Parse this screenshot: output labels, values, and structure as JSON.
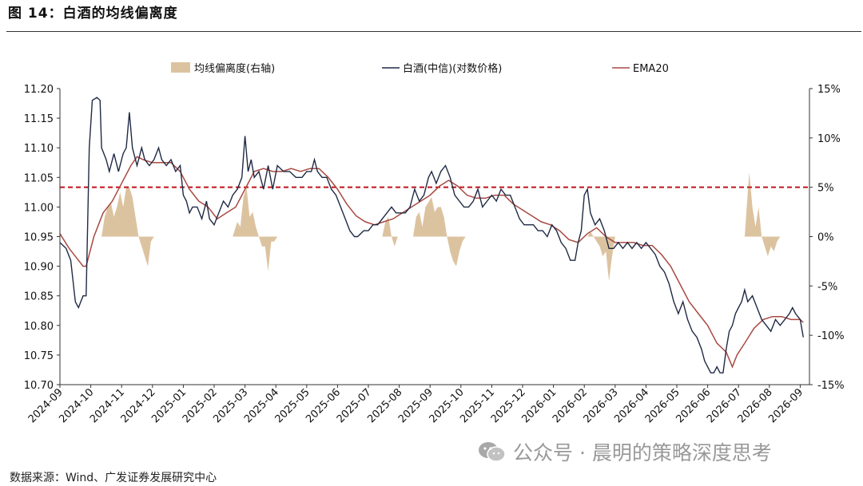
{
  "figure_title": "图 14：白酒的均线偏离度",
  "source_note": "数据来源：Wind、广发证券发展研究中心",
  "watermark": {
    "text": "公众号 · 晨明的策略深度思考",
    "icon": "wechat-icon"
  },
  "colors": {
    "price": "#1f2a44",
    "ema": "#a84a43",
    "deviation": "#dcc3a0",
    "threshold": "#c0141b",
    "axis": "#333333"
  },
  "chart_data": {
    "type": "line",
    "legend_position": "top",
    "grid": false,
    "legend": [
      "均线偏离度(右轴)",
      "白酒(中信)(对数价格)",
      "EMA20"
    ],
    "x_ticks": [
      "2024-09",
      "2024-10",
      "2024-11",
      "2024-12",
      "2025-01",
      "2025-02",
      "2025-03",
      "2025-04",
      "2025-05",
      "2025-06",
      "2025-07",
      "2025-08",
      "2025-09",
      "2025-10",
      "2025-11",
      "2025-12",
      "2026-01",
      "2026-02",
      "2026-03",
      "2026-04",
      "2026-05",
      "2026-06",
      "2026-07",
      "2026-08",
      "2026-09"
    ],
    "x_range": [
      0,
      24.3
    ],
    "left_axis": {
      "ylim": [
        10.7,
        11.2
      ],
      "ticks": [
        "10.70",
        "10.75",
        "10.80",
        "10.85",
        "10.90",
        "10.95",
        "11.00",
        "11.05",
        "11.10",
        "11.15",
        "11.20"
      ]
    },
    "right_axis": {
      "ylim": [
        -15,
        15
      ],
      "ticks": [
        "-15%",
        "-10%",
        "-5%",
        "0%",
        "5%",
        "10%",
        "15%"
      ]
    },
    "threshold_percent": 5,
    "price_series": {
      "name": "白酒(中信)(对数价格)",
      "points": [
        [
          0,
          10.94
        ],
        [
          0.2,
          10.93
        ],
        [
          0.35,
          10.91
        ],
        [
          0.5,
          10.84
        ],
        [
          0.6,
          10.83
        ],
        [
          0.75,
          10.85
        ],
        [
          0.85,
          10.85
        ],
        [
          0.95,
          11.1
        ],
        [
          1.05,
          11.18
        ],
        [
          1.2,
          11.185
        ],
        [
          1.3,
          11.18
        ],
        [
          1.35,
          11.1
        ],
        [
          1.5,
          11.08
        ],
        [
          1.6,
          11.06
        ],
        [
          1.75,
          11.09
        ],
        [
          1.9,
          11.06
        ],
        [
          2.05,
          11.09
        ],
        [
          2.15,
          11.1
        ],
        [
          2.25,
          11.16
        ],
        [
          2.35,
          11.1
        ],
        [
          2.5,
          11.07
        ],
        [
          2.65,
          11.1
        ],
        [
          2.75,
          11.08
        ],
        [
          2.9,
          11.07
        ],
        [
          3.05,
          11.08
        ],
        [
          3.2,
          11.1
        ],
        [
          3.3,
          11.08
        ],
        [
          3.45,
          11.07
        ],
        [
          3.6,
          11.08
        ],
        [
          3.75,
          11.06
        ],
        [
          3.9,
          11.07
        ],
        [
          4.0,
          11.02
        ],
        [
          4.1,
          11.01
        ],
        [
          4.2,
          10.99
        ],
        [
          4.3,
          11.0
        ],
        [
          4.45,
          11.0
        ],
        [
          4.6,
          10.98
        ],
        [
          4.75,
          11.01
        ],
        [
          4.85,
          10.98
        ],
        [
          5.0,
          10.97
        ],
        [
          5.15,
          10.99
        ],
        [
          5.3,
          11.01
        ],
        [
          5.45,
          11.0
        ],
        [
          5.6,
          11.02
        ],
        [
          5.75,
          11.03
        ],
        [
          5.9,
          11.05
        ],
        [
          6.0,
          11.12
        ],
        [
          6.1,
          11.06
        ],
        [
          6.2,
          11.08
        ],
        [
          6.3,
          11.05
        ],
        [
          6.45,
          11.06
        ],
        [
          6.6,
          11.03
        ],
        [
          6.75,
          11.07
        ],
        [
          6.9,
          11.03
        ],
        [
          7.05,
          11.07
        ],
        [
          7.25,
          11.06
        ],
        [
          7.45,
          11.06
        ],
        [
          7.65,
          11.05
        ],
        [
          7.85,
          11.05
        ],
        [
          8.0,
          11.06
        ],
        [
          8.15,
          11.06
        ],
        [
          8.25,
          11.08
        ],
        [
          8.35,
          11.06
        ],
        [
          8.5,
          11.05
        ],
        [
          8.65,
          11.05
        ],
        [
          8.8,
          11.03
        ],
        [
          8.95,
          11.02
        ],
        [
          9.1,
          11.0
        ],
        [
          9.25,
          10.98
        ],
        [
          9.4,
          10.96
        ],
        [
          9.55,
          10.95
        ],
        [
          9.65,
          10.95
        ],
        [
          9.85,
          10.96
        ],
        [
          10.0,
          10.96
        ],
        [
          10.15,
          10.97
        ],
        [
          10.3,
          10.97
        ],
        [
          10.45,
          10.98
        ],
        [
          10.6,
          10.99
        ],
        [
          10.75,
          11.0
        ],
        [
          10.9,
          10.99
        ],
        [
          11.05,
          10.99
        ],
        [
          11.2,
          10.99
        ],
        [
          11.35,
          11.0
        ],
        [
          11.5,
          11.03
        ],
        [
          11.65,
          11.01
        ],
        [
          11.8,
          11.02
        ],
        [
          11.95,
          11.05
        ],
        [
          12.05,
          11.06
        ],
        [
          12.2,
          11.04
        ],
        [
          12.35,
          11.06
        ],
        [
          12.5,
          11.07
        ],
        [
          12.65,
          11.05
        ],
        [
          12.8,
          11.02
        ],
        [
          12.95,
          11.01
        ],
        [
          13.1,
          11.0
        ],
        [
          13.25,
          11.0
        ],
        [
          13.4,
          11.01
        ],
        [
          13.55,
          11.03
        ],
        [
          13.7,
          11.0
        ],
        [
          13.85,
          11.01
        ],
        [
          14.0,
          11.02
        ],
        [
          14.15,
          11.01
        ],
        [
          14.3,
          11.03
        ],
        [
          14.45,
          11.02
        ],
        [
          14.6,
          11.02
        ],
        [
          14.75,
          11.0
        ],
        [
          14.9,
          10.98
        ],
        [
          15.05,
          10.97
        ],
        [
          15.2,
          10.97
        ],
        [
          15.35,
          10.97
        ],
        [
          15.5,
          10.96
        ],
        [
          15.65,
          10.96
        ],
        [
          15.8,
          10.95
        ],
        [
          15.95,
          10.97
        ],
        [
          16.1,
          10.96
        ],
        [
          16.25,
          10.94
        ],
        [
          16.4,
          10.93
        ],
        [
          16.55,
          10.91
        ],
        [
          16.7,
          10.91
        ],
        [
          16.8,
          10.94
        ],
        [
          16.9,
          10.96
        ],
        [
          17.0,
          11.02
        ],
        [
          17.1,
          11.03
        ],
        [
          17.2,
          10.99
        ],
        [
          17.35,
          10.97
        ],
        [
          17.5,
          10.98
        ],
        [
          17.65,
          10.96
        ],
        [
          17.8,
          10.93
        ],
        [
          17.95,
          10.93
        ],
        [
          18.1,
          10.94
        ],
        [
          18.25,
          10.93
        ],
        [
          18.4,
          10.94
        ],
        [
          18.55,
          10.93
        ],
        [
          18.7,
          10.94
        ],
        [
          18.85,
          10.93
        ],
        [
          19.0,
          10.94
        ],
        [
          19.15,
          10.93
        ],
        [
          19.3,
          10.92
        ],
        [
          19.45,
          10.9
        ],
        [
          19.6,
          10.89
        ],
        [
          19.75,
          10.87
        ],
        [
          19.9,
          10.84
        ],
        [
          20.05,
          10.82
        ],
        [
          20.2,
          10.84
        ],
        [
          20.35,
          10.81
        ],
        [
          20.5,
          10.79
        ],
        [
          20.65,
          10.78
        ],
        [
          20.8,
          10.76
        ],
        [
          20.9,
          10.74
        ],
        [
          21.0,
          10.73
        ],
        [
          21.1,
          10.72
        ],
        [
          21.2,
          10.72
        ],
        [
          21.3,
          10.73
        ],
        [
          21.4,
          10.72
        ],
        [
          21.5,
          10.72
        ],
        [
          21.6,
          10.76
        ],
        [
          21.7,
          10.79
        ],
        [
          21.8,
          10.8
        ],
        [
          21.9,
          10.82
        ],
        [
          22.0,
          10.83
        ],
        [
          22.1,
          10.84
        ],
        [
          22.2,
          10.86
        ],
        [
          22.3,
          10.84
        ],
        [
          22.45,
          10.85
        ],
        [
          22.6,
          10.83
        ],
        [
          22.75,
          10.81
        ],
        [
          22.9,
          10.8
        ],
        [
          23.05,
          10.79
        ],
        [
          23.2,
          10.81
        ],
        [
          23.35,
          10.8
        ],
        [
          23.5,
          10.81
        ],
        [
          23.65,
          10.82
        ],
        [
          23.75,
          10.83
        ],
        [
          23.85,
          10.82
        ],
        [
          24.0,
          10.81
        ],
        [
          24.1,
          10.78
        ]
      ]
    },
    "ema_series": {
      "name": "EMA20",
      "points": [
        [
          0,
          10.955
        ],
        [
          0.3,
          10.93
        ],
        [
          0.6,
          10.91
        ],
        [
          0.75,
          10.9
        ],
        [
          0.85,
          10.9
        ],
        [
          1.1,
          10.95
        ],
        [
          1.4,
          10.99
        ],
        [
          1.7,
          11.01
        ],
        [
          2.0,
          11.04
        ],
        [
          2.3,
          11.07
        ],
        [
          2.5,
          11.085
        ],
        [
          2.7,
          11.08
        ],
        [
          3.0,
          11.075
        ],
        [
          3.3,
          11.075
        ],
        [
          3.6,
          11.075
        ],
        [
          3.9,
          11.06
        ],
        [
          4.2,
          11.03
        ],
        [
          4.5,
          11.01
        ],
        [
          4.8,
          11.0
        ],
        [
          5.1,
          10.98
        ],
        [
          5.4,
          10.99
        ],
        [
          5.7,
          11.0
        ],
        [
          6.0,
          11.03
        ],
        [
          6.3,
          11.06
        ],
        [
          6.6,
          11.065
        ],
        [
          6.9,
          11.06
        ],
        [
          7.2,
          11.06
        ],
        [
          7.5,
          11.065
        ],
        [
          7.8,
          11.06
        ],
        [
          8.1,
          11.065
        ],
        [
          8.4,
          11.065
        ],
        [
          8.7,
          11.05
        ],
        [
          9.0,
          11.03
        ],
        [
          9.3,
          11.005
        ],
        [
          9.6,
          10.985
        ],
        [
          9.9,
          10.975
        ],
        [
          10.2,
          10.97
        ],
        [
          10.5,
          10.975
        ],
        [
          10.8,
          10.98
        ],
        [
          11.1,
          10.99
        ],
        [
          11.4,
          11.0
        ],
        [
          11.7,
          11.01
        ],
        [
          12.0,
          11.02
        ],
        [
          12.3,
          11.035
        ],
        [
          12.6,
          11.045
        ],
        [
          12.9,
          11.035
        ],
        [
          13.2,
          11.02
        ],
        [
          13.5,
          11.015
        ],
        [
          13.8,
          11.015
        ],
        [
          14.1,
          11.02
        ],
        [
          14.4,
          11.02
        ],
        [
          14.7,
          11.005
        ],
        [
          15.0,
          10.995
        ],
        [
          15.3,
          10.985
        ],
        [
          15.6,
          10.975
        ],
        [
          15.9,
          10.97
        ],
        [
          16.2,
          10.96
        ],
        [
          16.5,
          10.945
        ],
        [
          16.8,
          10.94
        ],
        [
          17.1,
          10.955
        ],
        [
          17.4,
          10.965
        ],
        [
          17.7,
          10.95
        ],
        [
          18.0,
          10.94
        ],
        [
          18.3,
          10.94
        ],
        [
          18.6,
          10.94
        ],
        [
          18.9,
          10.935
        ],
        [
          19.2,
          10.935
        ],
        [
          19.5,
          10.92
        ],
        [
          19.8,
          10.9
        ],
        [
          20.1,
          10.87
        ],
        [
          20.4,
          10.84
        ],
        [
          20.7,
          10.82
        ],
        [
          21.0,
          10.8
        ],
        [
          21.3,
          10.77
        ],
        [
          21.6,
          10.755
        ],
        [
          21.8,
          10.73
        ],
        [
          21.95,
          10.75
        ],
        [
          22.2,
          10.77
        ],
        [
          22.5,
          10.795
        ],
        [
          22.8,
          10.81
        ],
        [
          23.1,
          10.815
        ],
        [
          23.4,
          10.815
        ],
        [
          23.7,
          10.81
        ],
        [
          24.0,
          10.81
        ],
        [
          24.1,
          10.805
        ]
      ]
    },
    "deviation_series": {
      "name": "均线偏离度(右轴)",
      "unit": "%",
      "points": [
        [
          1.35,
          0
        ],
        [
          1.45,
          2
        ],
        [
          1.55,
          3
        ],
        [
          1.65,
          3.5
        ],
        [
          1.75,
          2
        ],
        [
          1.85,
          3
        ],
        [
          1.95,
          4.5
        ],
        [
          2.05,
          3
        ],
        [
          2.15,
          5
        ],
        [
          2.25,
          5
        ],
        [
          2.35,
          4
        ],
        [
          2.45,
          2
        ],
        [
          2.55,
          0
        ],
        [
          2.65,
          -1
        ],
        [
          2.75,
          -2
        ],
        [
          2.85,
          -3
        ],
        [
          2.95,
          -0.5
        ],
        [
          3.05,
          0
        ],
        [
          5.6,
          0
        ],
        [
          5.75,
          1.5
        ],
        [
          5.85,
          1
        ],
        [
          5.95,
          4
        ],
        [
          6.05,
          5
        ],
        [
          6.15,
          2
        ],
        [
          6.25,
          2.5
        ],
        [
          6.35,
          1
        ],
        [
          6.45,
          0
        ],
        [
          6.55,
          -1
        ],
        [
          6.65,
          -1
        ],
        [
          6.75,
          -3.5
        ],
        [
          6.85,
          -0.5
        ],
        [
          6.95,
          -0.5
        ],
        [
          7.05,
          0
        ],
        [
          10.45,
          0
        ],
        [
          10.55,
          1.5
        ],
        [
          10.65,
          2
        ],
        [
          10.75,
          0
        ],
        [
          10.85,
          -1
        ],
        [
          10.95,
          0
        ],
        [
          11.45,
          0
        ],
        [
          11.55,
          2
        ],
        [
          11.65,
          2.5
        ],
        [
          11.75,
          1
        ],
        [
          11.85,
          3
        ],
        [
          11.95,
          3.5
        ],
        [
          12.05,
          4
        ],
        [
          12.15,
          2.5
        ],
        [
          12.25,
          3
        ],
        [
          12.35,
          3
        ],
        [
          12.45,
          2
        ],
        [
          12.55,
          0
        ],
        [
          12.65,
          -1.5
        ],
        [
          12.75,
          -2.5
        ],
        [
          12.85,
          -3
        ],
        [
          12.95,
          -1.5
        ],
        [
          13.05,
          -0.5
        ],
        [
          13.15,
          0
        ],
        [
          17.1,
          0
        ],
        [
          17.2,
          0.5
        ],
        [
          17.3,
          0
        ],
        [
          17.4,
          -0.5
        ],
        [
          17.5,
          -1
        ],
        [
          17.6,
          -2
        ],
        [
          17.7,
          -1.5
        ],
        [
          17.8,
          -4.5
        ],
        [
          17.9,
          -2
        ],
        [
          18.0,
          0
        ],
        [
          22.2,
          0
        ],
        [
          22.3,
          4.5
        ],
        [
          22.35,
          6.5
        ],
        [
          22.45,
          3
        ],
        [
          22.55,
          1
        ],
        [
          22.65,
          3
        ],
        [
          22.75,
          0
        ],
        [
          22.85,
          -1
        ],
        [
          22.95,
          -2
        ],
        [
          23.05,
          -1
        ],
        [
          23.15,
          -1.5
        ],
        [
          23.25,
          -0.5
        ],
        [
          23.35,
          0
        ]
      ]
    }
  }
}
